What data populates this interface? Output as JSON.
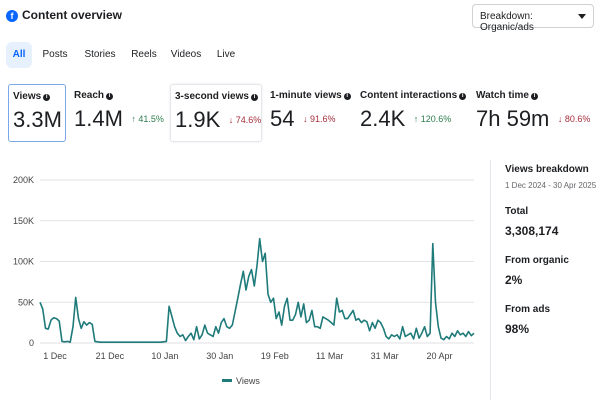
{
  "header": {
    "title": "Content overview",
    "breakdown_label": "Breakdown: Organic/ads",
    "fb_icon": "facebook-icon"
  },
  "tabs": [
    {
      "label": "All",
      "active": true
    },
    {
      "label": "Posts",
      "active": false
    },
    {
      "label": "Stories",
      "active": false
    },
    {
      "label": "Reels",
      "active": false
    },
    {
      "label": "Videos",
      "active": false
    },
    {
      "label": "Live",
      "active": false
    }
  ],
  "metrics": [
    {
      "label": "Views",
      "value": "3.3M",
      "change": "",
      "direction": ""
    },
    {
      "label": "Reach",
      "value": "1.4M",
      "change": "↑ 41.5%",
      "direction": "up"
    },
    {
      "label": "3-second views",
      "value": "1.9K",
      "change": "↓ 74.6%",
      "direction": "down"
    },
    {
      "label": "1-minute views",
      "value": "54",
      "change": "↓ 91.6%",
      "direction": "down"
    },
    {
      "label": "Content interactions",
      "value": "2.4K",
      "change": "↑ 120.6%",
      "direction": "up"
    },
    {
      "label": "Watch time",
      "value": "7h 59m",
      "change": "↓ 80.6%",
      "direction": "down"
    }
  ],
  "breakdown": {
    "title": "Views breakdown",
    "date_range": "1 Dec 2024 - 30 Apr 2025",
    "total_label": "Total",
    "total_value": "3,308,174",
    "organic_label": "From organic",
    "organic_value": "2%",
    "ads_label": "From ads",
    "ads_value": "98%"
  },
  "chart_data": {
    "type": "line",
    "legend": "Views",
    "y_ticks": [
      "200K",
      "150K",
      "100K",
      "50K",
      "0"
    ],
    "ylim": [
      0,
      200000
    ],
    "x_tick_labels": [
      "1 Dec",
      "21 Dec",
      "10 Jan",
      "30 Jan",
      "19 Feb",
      "11 Mar",
      "31 Mar",
      "20 Apr"
    ],
    "x_tick_days": [
      0,
      20,
      40,
      60,
      80,
      100,
      120,
      140
    ],
    "series_color": "#1f7a7a",
    "points": [
      [
        0,
        50000
      ],
      [
        1,
        42000
      ],
      [
        2,
        18000
      ],
      [
        3,
        17000
      ],
      [
        4,
        28000
      ],
      [
        5,
        31000
      ],
      [
        6,
        30000
      ],
      [
        7,
        27000
      ],
      [
        8,
        2000
      ],
      [
        9,
        1500
      ],
      [
        10,
        2000
      ],
      [
        11,
        1000
      ],
      [
        12,
        20000
      ],
      [
        13,
        56000
      ],
      [
        14,
        30000
      ],
      [
        15,
        18000
      ],
      [
        16,
        26000
      ],
      [
        17,
        22000
      ],
      [
        18,
        25000
      ],
      [
        19,
        23000
      ],
      [
        20,
        2000
      ],
      [
        22,
        1000
      ],
      [
        24,
        1000
      ],
      [
        26,
        1000
      ],
      [
        28,
        1000
      ],
      [
        30,
        1000
      ],
      [
        32,
        1000
      ],
      [
        34,
        1000
      ],
      [
        36,
        1000
      ],
      [
        38,
        1000
      ],
      [
        40,
        1000
      ],
      [
        42,
        1000
      ],
      [
        44,
        1000
      ],
      [
        46,
        2000
      ],
      [
        47,
        45000
      ],
      [
        48,
        33000
      ],
      [
        49,
        20000
      ],
      [
        50,
        12000
      ],
      [
        51,
        8000
      ],
      [
        52,
        10000
      ],
      [
        53,
        3000
      ],
      [
        54,
        8000
      ],
      [
        55,
        12000
      ],
      [
        56,
        4000
      ],
      [
        57,
        20000
      ],
      [
        58,
        5000
      ],
      [
        59,
        10000
      ],
      [
        60,
        22000
      ],
      [
        61,
        12000
      ],
      [
        62,
        10000
      ],
      [
        63,
        8000
      ],
      [
        64,
        20000
      ],
      [
        65,
        12000
      ],
      [
        66,
        25000
      ],
      [
        67,
        30000
      ],
      [
        68,
        20000
      ],
      [
        69,
        18000
      ],
      [
        70,
        22000
      ],
      [
        71,
        38000
      ],
      [
        72,
        55000
      ],
      [
        73,
        72000
      ],
      [
        74,
        88000
      ],
      [
        75,
        65000
      ],
      [
        76,
        82000
      ],
      [
        77,
        90000
      ],
      [
        78,
        70000
      ],
      [
        79,
        95000
      ],
      [
        80,
        128000
      ],
      [
        81,
        100000
      ],
      [
        82,
        110000
      ],
      [
        83,
        60000
      ],
      [
        84,
        50000
      ],
      [
        85,
        55000
      ],
      [
        86,
        30000
      ],
      [
        87,
        38000
      ],
      [
        88,
        22000
      ],
      [
        89,
        45000
      ],
      [
        90,
        55000
      ],
      [
        91,
        28000
      ],
      [
        92,
        28000
      ],
      [
        93,
        35000
      ],
      [
        94,
        50000
      ],
      [
        95,
        32000
      ],
      [
        96,
        48000
      ],
      [
        97,
        25000
      ],
      [
        98,
        28000
      ],
      [
        99,
        40000
      ],
      [
        100,
        20000
      ],
      [
        101,
        20000
      ],
      [
        102,
        18000
      ],
      [
        103,
        32000
      ],
      [
        104,
        30000
      ],
      [
        105,
        28000
      ],
      [
        106,
        25000
      ],
      [
        107,
        22000
      ],
      [
        108,
        55000
      ],
      [
        109,
        38000
      ],
      [
        110,
        40000
      ],
      [
        111,
        30000
      ],
      [
        112,
        30000
      ],
      [
        113,
        35000
      ],
      [
        114,
        40000
      ],
      [
        115,
        28000
      ],
      [
        116,
        30000
      ],
      [
        117,
        25000
      ],
      [
        118,
        28000
      ],
      [
        119,
        26000
      ],
      [
        120,
        15000
      ],
      [
        121,
        25000
      ],
      [
        122,
        18000
      ],
      [
        123,
        28000
      ],
      [
        124,
        25000
      ],
      [
        125,
        18000
      ],
      [
        126,
        8000
      ],
      [
        127,
        5000
      ],
      [
        128,
        10000
      ],
      [
        129,
        8000
      ],
      [
        130,
        10000
      ],
      [
        131,
        5000
      ],
      [
        132,
        20000
      ],
      [
        133,
        8000
      ],
      [
        134,
        10000
      ],
      [
        135,
        12000
      ],
      [
        136,
        5000
      ],
      [
        137,
        18000
      ],
      [
        138,
        6000
      ],
      [
        139,
        12000
      ],
      [
        140,
        20000
      ],
      [
        141,
        8000
      ],
      [
        142,
        12000
      ],
      [
        143,
        122000
      ],
      [
        144,
        50000
      ],
      [
        145,
        20000
      ],
      [
        146,
        6000
      ],
      [
        147,
        4000
      ],
      [
        148,
        8000
      ],
      [
        149,
        5000
      ],
      [
        150,
        12000
      ],
      [
        151,
        8000
      ],
      [
        152,
        15000
      ],
      [
        153,
        10000
      ],
      [
        154,
        12000
      ],
      [
        155,
        8000
      ],
      [
        156,
        14000
      ],
      [
        157,
        9000
      ],
      [
        158,
        12000
      ]
    ]
  }
}
